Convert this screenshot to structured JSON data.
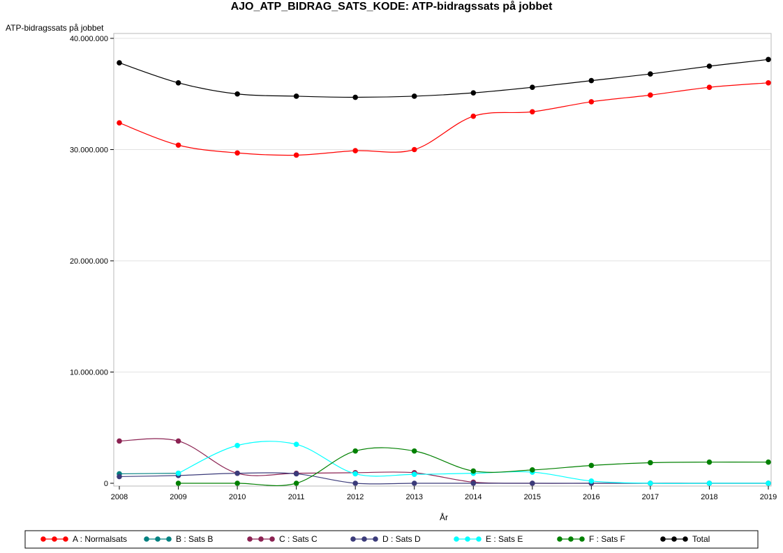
{
  "chart_data": {
    "type": "line",
    "title": "AJO_ATP_BIDRAG_SATS_KODE: ATP-bidragssats på jobbet",
    "xlabel": "År",
    "ylabel": "ATP-bidragssats på jobbet",
    "x": [
      2008,
      2009,
      2010,
      2011,
      2012,
      2013,
      2014,
      2015,
      2016,
      2017,
      2018,
      2019
    ],
    "ylim": [
      0,
      40000000
    ],
    "y_ticks": [
      0,
      10000000,
      20000000,
      30000000,
      40000000
    ],
    "y_tick_labels": [
      "0",
      "10.000.000",
      "20.000.000",
      "30.000.000",
      "40.000.000"
    ],
    "grid": "horizontal",
    "legend_position": "bottom",
    "series": [
      {
        "name": "A : Normalsats",
        "color": "#ff0000",
        "values": [
          32400000,
          30400000,
          29700000,
          29500000,
          29900000,
          30000000,
          33000000,
          33400000,
          34300000,
          34900000,
          35600000,
          36000000
        ]
      },
      {
        "name": "B : Sats B",
        "color": "#008080",
        "values": [
          850000,
          900000,
          null,
          null,
          null,
          null,
          null,
          null,
          null,
          null,
          null,
          null
        ]
      },
      {
        "name": "C : Sats C",
        "color": "#8b2252",
        "values": [
          3800000,
          3800000,
          900000,
          900000,
          950000,
          950000,
          100000,
          0,
          0,
          0,
          0,
          0
        ]
      },
      {
        "name": "D : Sats D",
        "color": "#3b3b7a",
        "values": [
          600000,
          700000,
          900000,
          850000,
          0,
          0,
          0,
          0,
          0,
          0,
          0,
          0
        ]
      },
      {
        "name": "E : Sats E",
        "color": "#00ffff",
        "values": [
          null,
          900000,
          3400000,
          3500000,
          850000,
          800000,
          900000,
          1000000,
          200000,
          0,
          0,
          0
        ]
      },
      {
        "name": "F : Sats F",
        "color": "#008000",
        "values": [
          null,
          0,
          0,
          0,
          2900000,
          2900000,
          1100000,
          1200000,
          1600000,
          1850000,
          1900000,
          1900000
        ]
      },
      {
        "name": "Total",
        "color": "#000000",
        "values": [
          37800000,
          36000000,
          35000000,
          34800000,
          34700000,
          34800000,
          35100000,
          35600000,
          36200000,
          36800000,
          37500000,
          38100000
        ]
      }
    ]
  }
}
